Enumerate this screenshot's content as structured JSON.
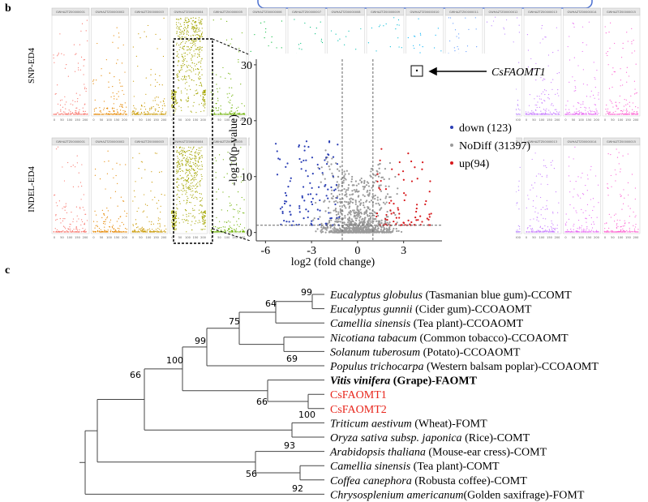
{
  "panels": {
    "b": "b",
    "c": "c"
  },
  "manhattan": {
    "row_labels": [
      "SNP-ED4",
      "INDEL-ED4"
    ],
    "strips": [
      "GWHAZTZ00000001",
      "GWHAZTZ00000002",
      "GWHAZTZ00000003",
      "GWHAZTZ00000004",
      "GWHAZTZ00000005",
      "GWHAZTZ00000006",
      "GWHAZTZ00000007",
      "GWHAZTZ00000008",
      "GWHAZTZ00000009",
      "GWHAZTZ00000010",
      "GWHAZTZ00000011",
      "GWHAZTZ00000012",
      "GWHAZTZ00000013",
      "GWHAZTZ00000014",
      "GWHAZTZ00000015"
    ],
    "xticks": [
      0,
      50,
      100,
      150,
      200
    ]
  },
  "volcano": {
    "ylabel": "-log10(p-value)",
    "xlabel": "log2 (fold change)",
    "xlim": [
      -6.6,
      5.5
    ],
    "ylim": [
      -1.5,
      31
    ],
    "xticks": [
      -6,
      -3,
      0,
      3
    ],
    "yticks": [
      0,
      10,
      20,
      30
    ],
    "annotation": "CsFAOMT1",
    "legend": [
      {
        "label": "down (123)",
        "color": "#2b3fb5"
      },
      {
        "label": "NoDiff (31397)",
        "color": "#9a9a9a"
      },
      {
        "label": "up(94)",
        "color": "#d7191c"
      }
    ]
  },
  "tree": {
    "leaves": [
      {
        "species": "Eucalyptus globulus",
        "rest": " (Tasmanian blue gum)-CCOMT"
      },
      {
        "species": "Eucalyptus gunnii",
        "rest": " (Cider gum)-CCOAOMT"
      },
      {
        "species": "Camellia sinensis",
        "rest": " (Tea plant)-CCOAOMT"
      },
      {
        "species": "Nicotiana tabacum",
        "rest": " (Common tobacco)-CCOAOMT"
      },
      {
        "species": "Solanum tuberosum",
        "rest": " (Potato)-CCOAOMT"
      },
      {
        "species": "Populus trichocarpa",
        "rest": " (Western balsam poplar)-CCOAOMT"
      },
      {
        "species": "Vitis vinifera",
        "rest": "  (Grape)-FAOMT",
        "bold": true
      },
      {
        "name": "CsFAOMT1",
        "color": "#e8261c"
      },
      {
        "name": "CsFAOMT2",
        "color": "#e8261c"
      },
      {
        "species": "Triticum aestivum",
        "rest": " (Wheat)-FOMT"
      },
      {
        "species": "Oryza sativa subsp. japonica",
        "rest": " (Rice)-COMT"
      },
      {
        "species": "Arabidopsis thaliana",
        "rest": " (Mouse-ear cress)-COMT"
      },
      {
        "species": "Camellia sinensis",
        "rest": " (Tea plant)-COMT"
      },
      {
        "species": "Coffea canephora",
        "rest": " (Robusta coffee)-COMT"
      },
      {
        "species": "Chrysosplenium americanum",
        "rest": "(Golden saxifrage)-FOMT"
      }
    ],
    "bootstrap": [
      99,
      64,
      75,
      69,
      99,
      100,
      66,
      100,
      66,
      93,
      56,
      92
    ]
  }
}
